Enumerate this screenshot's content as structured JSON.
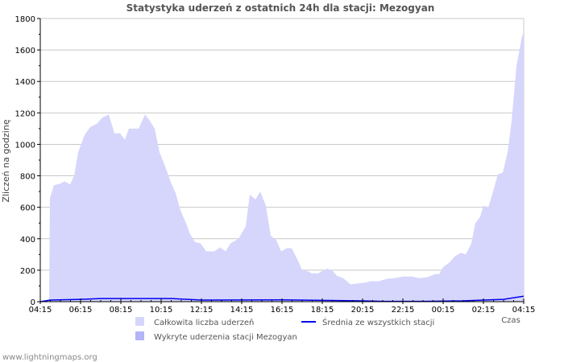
{
  "chart_data": {
    "type": "area",
    "title": "Statystyka uderzeń z ostatnich 24h dla stacji: Mezogyan",
    "xlabel": "Czas",
    "ylabel": "Zliczeń na godzinę",
    "x_unit": "hours since 04:15",
    "xlim": [
      0,
      24
    ],
    "ylim": [
      0,
      1800
    ],
    "yticks": [
      0,
      200,
      400,
      600,
      800,
      1000,
      1200,
      1400,
      1600,
      1800
    ],
    "xtick_labels": [
      "04:15",
      "06:15",
      "08:15",
      "10:15",
      "12:15",
      "14:15",
      "16:15",
      "18:15",
      "20:15",
      "22:15",
      "00:15",
      "02:15",
      "04:15"
    ],
    "grid": true,
    "legend_placement": "bottom",
    "series": [
      {
        "name": "Całkowita liczba uderzeń",
        "type": "area",
        "color": "#d6d6fc",
        "points": [
          [
            0.44,
            0
          ],
          [
            0.48,
            660
          ],
          [
            0.68,
            740
          ],
          [
            1.0,
            750
          ],
          [
            1.2,
            765
          ],
          [
            1.48,
            745
          ],
          [
            1.68,
            800
          ],
          [
            1.88,
            950
          ],
          [
            2.2,
            1060
          ],
          [
            2.48,
            1110
          ],
          [
            2.8,
            1130
          ],
          [
            3.08,
            1170
          ],
          [
            3.4,
            1190
          ],
          [
            3.68,
            1070
          ],
          [
            3.96,
            1070
          ],
          [
            4.2,
            1030
          ],
          [
            4.4,
            1100
          ],
          [
            4.88,
            1100
          ],
          [
            5.2,
            1190
          ],
          [
            5.44,
            1150
          ],
          [
            5.68,
            1100
          ],
          [
            5.92,
            950
          ],
          [
            6.2,
            860
          ],
          [
            6.48,
            760
          ],
          [
            6.72,
            690
          ],
          [
            6.96,
            580
          ],
          [
            7.2,
            510
          ],
          [
            7.44,
            430
          ],
          [
            7.68,
            380
          ],
          [
            7.96,
            370
          ],
          [
            8.24,
            320
          ],
          [
            8.64,
            320
          ],
          [
            8.92,
            345
          ],
          [
            9.2,
            320
          ],
          [
            9.44,
            370
          ],
          [
            9.84,
            400
          ],
          [
            10.2,
            480
          ],
          [
            10.4,
            680
          ],
          [
            10.68,
            650
          ],
          [
            10.92,
            700
          ],
          [
            11.2,
            610
          ],
          [
            11.44,
            420
          ],
          [
            11.72,
            390
          ],
          [
            11.96,
            320
          ],
          [
            12.24,
            340
          ],
          [
            12.48,
            340
          ],
          [
            12.8,
            260
          ],
          [
            13.0,
            200
          ],
          [
            13.24,
            195
          ],
          [
            13.48,
            180
          ],
          [
            13.8,
            180
          ],
          [
            14.0,
            195
          ],
          [
            14.24,
            210
          ],
          [
            14.48,
            200
          ],
          [
            14.72,
            165
          ],
          [
            15.04,
            150
          ],
          [
            15.4,
            110
          ],
          [
            15.72,
            115
          ],
          [
            16.08,
            120
          ],
          [
            16.4,
            130
          ],
          [
            16.8,
            130
          ],
          [
            17.2,
            145
          ],
          [
            17.6,
            150
          ],
          [
            18.0,
            160
          ],
          [
            18.48,
            160
          ],
          [
            18.8,
            150
          ],
          [
            19.2,
            155
          ],
          [
            19.6,
            175
          ],
          [
            19.8,
            175
          ],
          [
            20.0,
            220
          ],
          [
            20.32,
            250
          ],
          [
            20.6,
            290
          ],
          [
            20.88,
            310
          ],
          [
            21.12,
            300
          ],
          [
            21.4,
            370
          ],
          [
            21.6,
            500
          ],
          [
            21.84,
            540
          ],
          [
            22.0,
            610
          ],
          [
            22.24,
            600
          ],
          [
            22.48,
            700
          ],
          [
            22.72,
            810
          ],
          [
            22.96,
            820
          ],
          [
            23.2,
            950
          ],
          [
            23.4,
            1150
          ],
          [
            23.64,
            1500
          ],
          [
            23.92,
            1690
          ],
          [
            24,
            1700
          ]
        ]
      },
      {
        "name": "Wykryte uderzenia stacji Mezogyan",
        "type": "area",
        "color": "#b4b4f8",
        "points": []
      },
      {
        "name": "Średnia ze wszystkich stacji",
        "type": "line",
        "color": "#0000ee",
        "points": [
          [
            0,
            0
          ],
          [
            0.5,
            10
          ],
          [
            2,
            15
          ],
          [
            3,
            20
          ],
          [
            6.5,
            20
          ],
          [
            8,
            10
          ],
          [
            12,
            12
          ],
          [
            14,
            8
          ],
          [
            16,
            5
          ],
          [
            17,
            2
          ],
          [
            19,
            2
          ],
          [
            21,
            5
          ],
          [
            22,
            10
          ],
          [
            23,
            15
          ],
          [
            24,
            35
          ]
        ]
      }
    ]
  },
  "footer": "www.lightningmaps.org"
}
